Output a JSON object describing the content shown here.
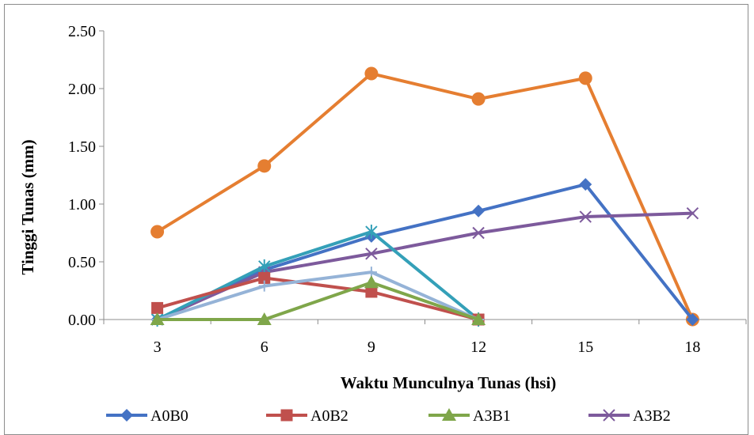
{
  "chart_data": {
    "type": "line",
    "title": "",
    "xlabel": "Waktu Munculnya Tunas (hsi)",
    "ylabel": "Tinggi Tunas (mm)",
    "categories": [
      "3",
      "6",
      "9",
      "12",
      "15",
      "18"
    ],
    "x_tick_labels": [
      "3",
      "6",
      "9",
      "12",
      "15",
      "18"
    ],
    "ylim": [
      0,
      2.5
    ],
    "y_tick_labels": [
      "0.00",
      "0.50",
      "1.00",
      "1.50",
      "2.00",
      "2.50"
    ],
    "y_ticks": [
      0,
      0.5,
      1,
      1.5,
      2,
      2.5
    ],
    "grid": false,
    "legend_position": "bottom",
    "series": [
      {
        "name": "",
        "color": "#e57e31",
        "marker": "circle",
        "values": [
          0.76,
          1.33,
          2.13,
          1.91,
          2.09,
          0.0
        ]
      },
      {
        "name": "A0B0",
        "color": "#4472c4",
        "marker": "diamond",
        "values": [
          0.0,
          0.43,
          0.72,
          0.94,
          1.17,
          0.0
        ]
      },
      {
        "name": "A3B2",
        "color": "#7d5a9c",
        "marker": "x",
        "values": [
          0.0,
          0.41,
          0.57,
          0.75,
          0.89,
          0.92
        ]
      },
      {
        "name": "",
        "color": "#34a0b8",
        "marker": "star",
        "values": [
          0.0,
          0.46,
          0.76,
          0.0,
          null,
          null
        ]
      },
      {
        "name": "A0B2",
        "color": "#c0504d",
        "marker": "square",
        "values": [
          0.1,
          0.36,
          0.24,
          0.0,
          null,
          null
        ]
      },
      {
        "name": "",
        "color": "#95b3d7",
        "marker": "plus",
        "values": [
          0.0,
          0.29,
          0.41,
          0.0,
          null,
          null
        ]
      },
      {
        "name": "A3B1",
        "color": "#7fa64a",
        "marker": "triangle",
        "values": [
          0.0,
          0.0,
          0.32,
          0.0,
          null,
          null
        ]
      }
    ],
    "legend": [
      {
        "name": "A0B0",
        "color": "#4472c4",
        "marker": "diamond"
      },
      {
        "name": "A0B2",
        "color": "#c0504d",
        "marker": "square"
      },
      {
        "name": "A3B1",
        "color": "#7fa64a",
        "marker": "triangle"
      },
      {
        "name": "A3B2",
        "color": "#7d5a9c",
        "marker": "x"
      }
    ]
  }
}
